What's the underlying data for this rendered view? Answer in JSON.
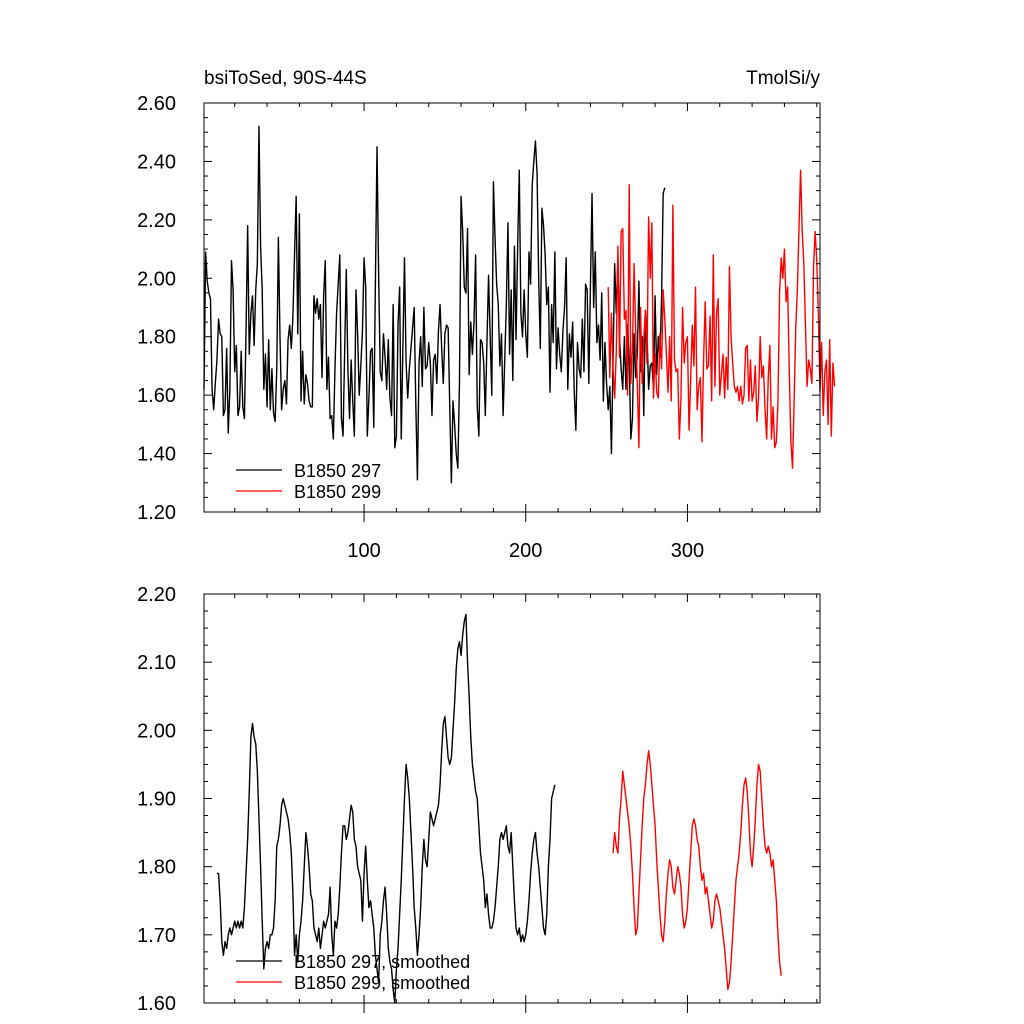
{
  "chart_data": [
    {
      "type": "line",
      "title_left": "bsiToSed, 90S-44S",
      "title_right": "TmolSi/y",
      "xlim": [
        1,
        382
      ],
      "ylim": [
        1.2,
        2.6
      ],
      "yticks": [
        "1.20",
        "1.40",
        "1.60",
        "1.80",
        "2.00",
        "2.20",
        "2.40",
        "2.60"
      ],
      "xticks": [
        "100",
        "200",
        "300"
      ],
      "legend_position": "bottom-left",
      "series": [
        {
          "name": "B1850 297",
          "color": "#000000",
          "x_start": 1,
          "values": [
            1.62,
            2.09,
            1.99,
            1.95,
            1.93,
            1.62,
            1.55,
            1.64,
            1.72,
            1.86,
            1.81,
            1.8,
            1.53,
            1.55,
            1.76,
            1.47,
            1.62,
            2.06,
            1.96,
            1.68,
            1.77,
            1.53,
            1.56,
            1.75,
            1.56,
            1.52,
            1.82,
            2.18,
            1.74,
            1.88,
            1.94,
            1.77,
            1.96,
            2.05,
            2.52,
            2.11,
            1.96,
            1.62,
            1.74,
            1.56,
            1.79,
            1.55,
            1.69,
            1.54,
            1.51,
            1.69,
            2.14,
            1.8,
            1.55,
            1.62,
            1.65,
            1.57,
            1.79,
            1.84,
            1.76,
            1.87,
            2.08,
            2.28,
            1.81,
            2.22,
            1.58,
            1.75,
            1.57,
            1.67,
            1.64,
            1.58,
            1.56,
            1.56,
            1.94,
            1.88,
            1.93,
            1.86,
            1.91,
            1.66,
            1.94,
            2.06,
            1.62,
            1.73,
            1.52,
            1.53,
            1.45,
            1.69,
            1.88,
            1.98,
            2.08,
            1.52,
            1.46,
            1.75,
            2.03,
            1.69,
            1.52,
            1.72,
            1.58,
            1.46,
            1.96,
            1.81,
            1.6,
            1.7,
            1.82,
            2.07,
            1.97,
            1.46,
            1.59,
            1.75,
            1.76,
            1.49,
            1.98,
            2.45,
            2.02,
            1.68,
            1.65,
            1.81,
            1.73,
            1.62,
            1.79,
            1.59,
            1.53,
            1.91,
            1.42,
            1.46,
            1.84,
            1.97,
            1.45,
            1.76,
            2.07,
            1.71,
            1.59,
            1.69,
            1.76,
            1.83,
            1.9,
            1.57,
            1.31,
            1.71,
            1.8,
            1.63,
            1.9,
            1.69,
            1.7,
            1.78,
            1.71,
            1.53,
            1.72,
            1.74,
            1.64,
            1.82,
            1.91,
            1.76,
            1.64,
            1.81,
            1.84,
            1.83,
            1.56,
            1.3,
            1.58,
            1.5,
            1.4,
            1.35,
            1.64,
            2.28,
            2.16,
            1.97,
            1.95,
            2.17,
            1.67,
            1.85,
            1.74,
            1.85,
            2.08,
            1.56,
            1.46,
            1.79,
            1.78,
            1.71,
            1.53,
            1.78,
            2.01,
            1.8,
            1.6,
            2.33,
            2.14,
            1.98,
            1.91,
            1.7,
            1.81,
            1.53,
            1.72,
            1.91,
            2.19,
            1.74,
            1.96,
            1.65,
            2.11,
            1.79,
            2.11,
            2.37,
            1.88,
            1.8,
            1.96,
            1.81,
            1.73,
            2.09,
            1.98,
            2.32,
            2.4,
            2.47,
            2.36,
            2.0,
            1.76,
            2.24,
            2.18,
            2.08,
            1.91,
            1.97,
            1.61,
            1.91,
            1.78,
            2.09,
            1.69,
            1.83,
            1.74,
            1.68,
            1.82,
            1.9,
            2.07,
            1.62,
            1.81,
            1.73,
            1.85,
            1.61,
            1.48,
            1.78,
            1.69,
            1.66,
            1.86,
            1.68,
            1.98,
            1.96,
            1.64,
            1.97,
            2.29,
            1.9,
            2.09,
            1.78,
            1.84,
            1.72,
            1.95,
            1.58,
            1.78,
            1.64,
            1.55,
            1.63,
            1.4,
            1.72,
            2.05,
            1.88,
            2.07,
            1.8,
            1.69,
            1.62,
            1.8,
            1.62,
            1.84,
            1.72,
            1.45,
            1.52,
            1.81,
            1.66,
            1.74,
            1.99,
            1.68,
            1.8,
            1.53,
            1.89,
            1.81,
            1.62,
            1.7,
            1.71,
            1.62,
            1.94,
            1.67,
            1.8,
            1.73,
            1.93,
            2.29,
            2.31
          ]
        },
        {
          "name": "B1850 299",
          "color": "#ff0000",
          "x_start": 251,
          "values": [
            1.97,
            1.66,
            1.88,
            1.69,
            1.59,
            1.75,
            2.11,
            1.73,
            2.16,
            2.17,
            1.86,
            1.89,
            1.6,
            2.32,
            1.64,
            1.76,
            2.05,
            1.82,
            1.64,
            1.42,
            1.9,
            1.64,
            1.79,
            1.89,
            1.71,
            2.21,
            2.0,
            2.19,
            1.59,
            1.74,
            1.61,
            1.59,
            1.81,
            1.69,
            1.96,
            1.86,
            1.74,
            1.61,
            1.8,
            1.58,
            2.25,
            1.72,
            1.68,
            1.69,
            1.45,
            1.59,
            1.9,
            1.71,
            1.78,
            1.8,
            1.48,
            1.65,
            1.84,
            1.7,
            1.97,
            1.55,
            1.63,
            1.66,
            1.44,
            1.72,
            1.92,
            1.69,
            1.7,
            1.87,
            1.58,
            2.08,
            1.63,
            1.88,
            1.93,
            1.6,
            1.67,
            1.74,
            1.59,
            1.73,
            1.62,
            2.04,
            1.8,
            1.71,
            1.63,
            1.61,
            1.63,
            1.58,
            1.63,
            1.57,
            1.6,
            1.76,
            1.77,
            1.58,
            1.72,
            1.58,
            1.61,
            1.7,
            1.51,
            1.59,
            1.8,
            1.66,
            1.7,
            1.55,
            1.45,
            1.66,
            1.77,
            1.45,
            1.56,
            1.42,
            1.44,
            1.58,
            1.95,
            2.07,
            2.0,
            2.1,
            1.92,
            1.97,
            1.68,
            1.44,
            1.35,
            1.58,
            1.83,
            1.96,
            2.17,
            2.37,
            2.16,
            2.05,
            1.84,
            1.63,
            1.72,
            1.69,
            1.64,
            2.04,
            2.16,
            2.06,
            1.88,
            1.61,
            1.78,
            1.53,
            1.68,
            1.72,
            1.5,
            1.79,
            1.46,
            1.71,
            1.63
          ]
        }
      ]
    },
    {
      "type": "line",
      "xlim": [
        1,
        382
      ],
      "ylim": [
        1.6,
        2.2
      ],
      "yticks": [
        "1.60",
        "1.70",
        "1.80",
        "1.90",
        "2.00",
        "2.10",
        "2.20"
      ],
      "legend_position": "bottom-left",
      "series": [
        {
          "name": "B1850 297, smoothed",
          "color": "#000000",
          "x_start": 9,
          "values": [
            1.79,
            1.79,
            1.75,
            1.69,
            1.67,
            1.69,
            1.68,
            1.7,
            1.71,
            1.7,
            1.71,
            1.72,
            1.71,
            1.72,
            1.71,
            1.72,
            1.71,
            1.74,
            1.79,
            1.84,
            1.91,
            1.99,
            2.01,
            1.99,
            1.98,
            1.94,
            1.87,
            1.8,
            1.72,
            1.65,
            1.68,
            1.69,
            1.68,
            1.7,
            1.7,
            1.71,
            1.75,
            1.83,
            1.84,
            1.86,
            1.89,
            1.9,
            1.89,
            1.88,
            1.87,
            1.85,
            1.82,
            1.76,
            1.67,
            1.7,
            1.66,
            1.7,
            1.72,
            1.75,
            1.8,
            1.85,
            1.83,
            1.8,
            1.76,
            1.75,
            1.71,
            1.7,
            1.69,
            1.71,
            1.68,
            1.7,
            1.72,
            1.71,
            1.72,
            1.73,
            1.77,
            1.7,
            1.67,
            1.72,
            1.71,
            1.73,
            1.77,
            1.82,
            1.86,
            1.86,
            1.84,
            1.85,
            1.87,
            1.89,
            1.88,
            1.84,
            1.83,
            1.8,
            1.79,
            1.78,
            1.72,
            1.79,
            1.83,
            1.78,
            1.74,
            1.75,
            1.73,
            1.71,
            1.67,
            1.65,
            1.63,
            1.7,
            1.72,
            1.75,
            1.77,
            1.73,
            1.68,
            1.66,
            1.65,
            1.62,
            1.6,
            1.65,
            1.68,
            1.73,
            1.78,
            1.84,
            1.9,
            1.95,
            1.93,
            1.9,
            1.85,
            1.8,
            1.74,
            1.71,
            1.67,
            1.7,
            1.74,
            1.8,
            1.84,
            1.81,
            1.8,
            1.84,
            1.88,
            1.87,
            1.86,
            1.87,
            1.88,
            1.89,
            1.92,
            1.97,
            2.01,
            2.02,
            1.99,
            1.96,
            1.95,
            1.96,
            2.0,
            2.04,
            2.09,
            2.12,
            2.13,
            2.11,
            2.14,
            2.16,
            2.17,
            2.1,
            2.05,
            1.99,
            1.95,
            1.93,
            1.91,
            1.9,
            1.86,
            1.82,
            1.8,
            1.78,
            1.74,
            1.76,
            1.73,
            1.71,
            1.71,
            1.72,
            1.74,
            1.77,
            1.8,
            1.84,
            1.85,
            1.84,
            1.85,
            1.86,
            1.83,
            1.82,
            1.85,
            1.8,
            1.75,
            1.71,
            1.7,
            1.71,
            1.69,
            1.7,
            1.69,
            1.7,
            1.72,
            1.75,
            1.79,
            1.82,
            1.84,
            1.85,
            1.82,
            1.8,
            1.77,
            1.74,
            1.71,
            1.7,
            1.73,
            1.8,
            1.84,
            1.9,
            1.91,
            1.92
          ]
        },
        {
          "name": "B1850 299, smoothed",
          "color": "#ff0000",
          "x_start": 254,
          "values": [
            1.82,
            1.85,
            1.83,
            1.82,
            1.87,
            1.9,
            1.94,
            1.92,
            1.9,
            1.88,
            1.86,
            1.83,
            1.79,
            1.74,
            1.7,
            1.71,
            1.76,
            1.81,
            1.86,
            1.9,
            1.92,
            1.95,
            1.97,
            1.95,
            1.92,
            1.89,
            1.86,
            1.81,
            1.77,
            1.73,
            1.7,
            1.69,
            1.72,
            1.76,
            1.79,
            1.81,
            1.8,
            1.77,
            1.76,
            1.78,
            1.8,
            1.79,
            1.77,
            1.73,
            1.71,
            1.72,
            1.74,
            1.78,
            1.82,
            1.86,
            1.87,
            1.86,
            1.84,
            1.83,
            1.8,
            1.78,
            1.79,
            1.76,
            1.77,
            1.75,
            1.73,
            1.71,
            1.72,
            1.75,
            1.76,
            1.75,
            1.74,
            1.72,
            1.7,
            1.68,
            1.65,
            1.62,
            1.63,
            1.66,
            1.7,
            1.74,
            1.78,
            1.8,
            1.82,
            1.85,
            1.89,
            1.92,
            1.93,
            1.91,
            1.87,
            1.82,
            1.8,
            1.83,
            1.87,
            1.92,
            1.95,
            1.94,
            1.9,
            1.86,
            1.83,
            1.82,
            1.83,
            1.82,
            1.8,
            1.81,
            1.78,
            1.75,
            1.7,
            1.66,
            1.64
          ]
        }
      ]
    }
  ]
}
